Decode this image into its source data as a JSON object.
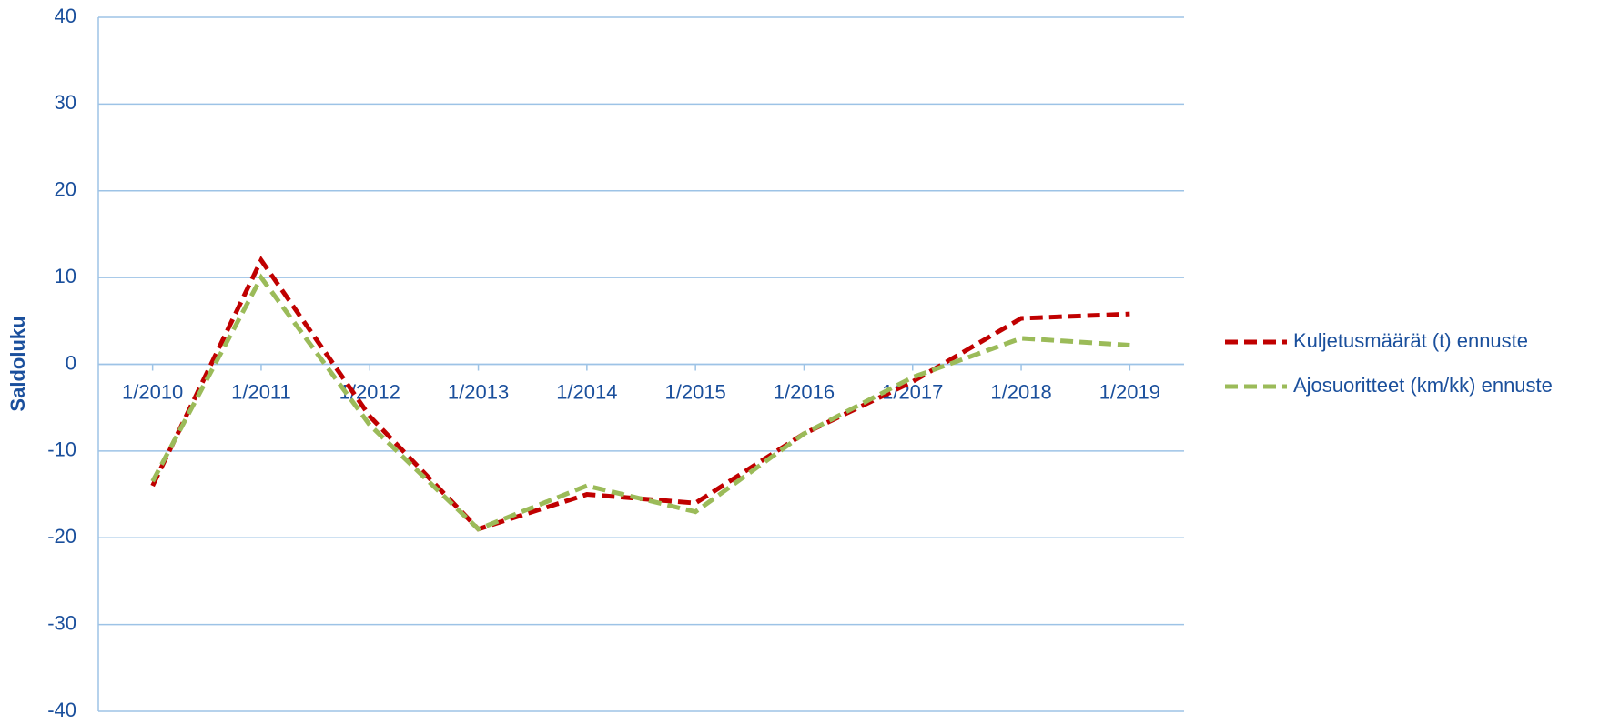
{
  "chart_data": {
    "type": "line",
    "y_label": "Saldoluku",
    "categories": [
      "1/2010",
      "1/2011",
      "1/2012",
      "1/2013",
      "1/2014",
      "1/2015",
      "1/2016",
      "1/2017",
      "1/2018",
      "1/2019"
    ],
    "series": [
      {
        "name": "Kuljetusmäärät (t) ennuste",
        "color": "#c00000",
        "values": [
          -14,
          12,
          -6,
          -19,
          -15,
          -16,
          -8,
          -2,
          5.3,
          5.8
        ]
      },
      {
        "name": "Ajosuoritteet (km/kk) ennuste",
        "color": "#9bbb59",
        "values": [
          -13.5,
          10,
          -7,
          -19,
          -14,
          -17,
          -8,
          -1.5,
          3,
          2.2
        ]
      }
    ],
    "ylim": [
      -40,
      40
    ],
    "yticks": [
      -40,
      -30,
      -20,
      -10,
      0,
      10,
      20,
      30,
      40
    ],
    "grid": true,
    "legend": "right"
  }
}
